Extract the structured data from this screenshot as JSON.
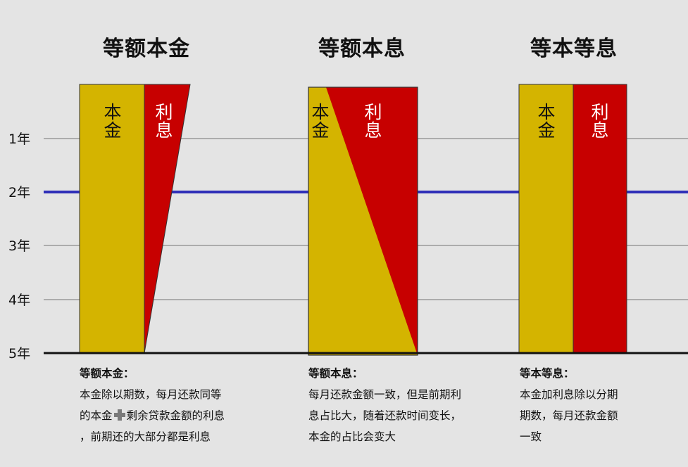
{
  "colors": {
    "background": "#e4e4e4",
    "principal": "#d4b400",
    "interest": "#c70000",
    "grid": "#999999",
    "highlight_line": "#2f2fb8",
    "baseline": "#111111"
  },
  "y_axis": {
    "labels": [
      "1年",
      "2年",
      "3年",
      "4年",
      "5年"
    ],
    "highlighted": "2年"
  },
  "panels": [
    {
      "title": "等额本金",
      "principal_label": [
        "本",
        "金"
      ],
      "interest_label": [
        "利",
        "息"
      ],
      "shape": "interest-decreasing-to-zero",
      "desc_heading": "等额本金：",
      "desc_lines": [
        "本金除以期数，每月还款同等",
        "的本金➕剩余贷款金额的利息",
        "，前期还的大部分都是利息"
      ]
    },
    {
      "title": "等额本息",
      "principal_label": [
        "本",
        "金"
      ],
      "interest_label": [
        "利",
        "息"
      ],
      "shape": "principal-share-increasing",
      "desc_heading": "等额本息：",
      "desc_lines": [
        "每月还款金额一致，但是前期利",
        "息占比大，随着还款时间变长，",
        "本金的占比会变大"
      ]
    },
    {
      "title": "等本等息",
      "principal_label": [
        "本",
        "金"
      ],
      "interest_label": [
        "利",
        "息"
      ],
      "shape": "constant-split",
      "desc_heading": "等本等息：",
      "desc_lines": [
        "本金加利息除以分期",
        "期数，每月还款金额",
        "一致"
      ]
    }
  ]
}
